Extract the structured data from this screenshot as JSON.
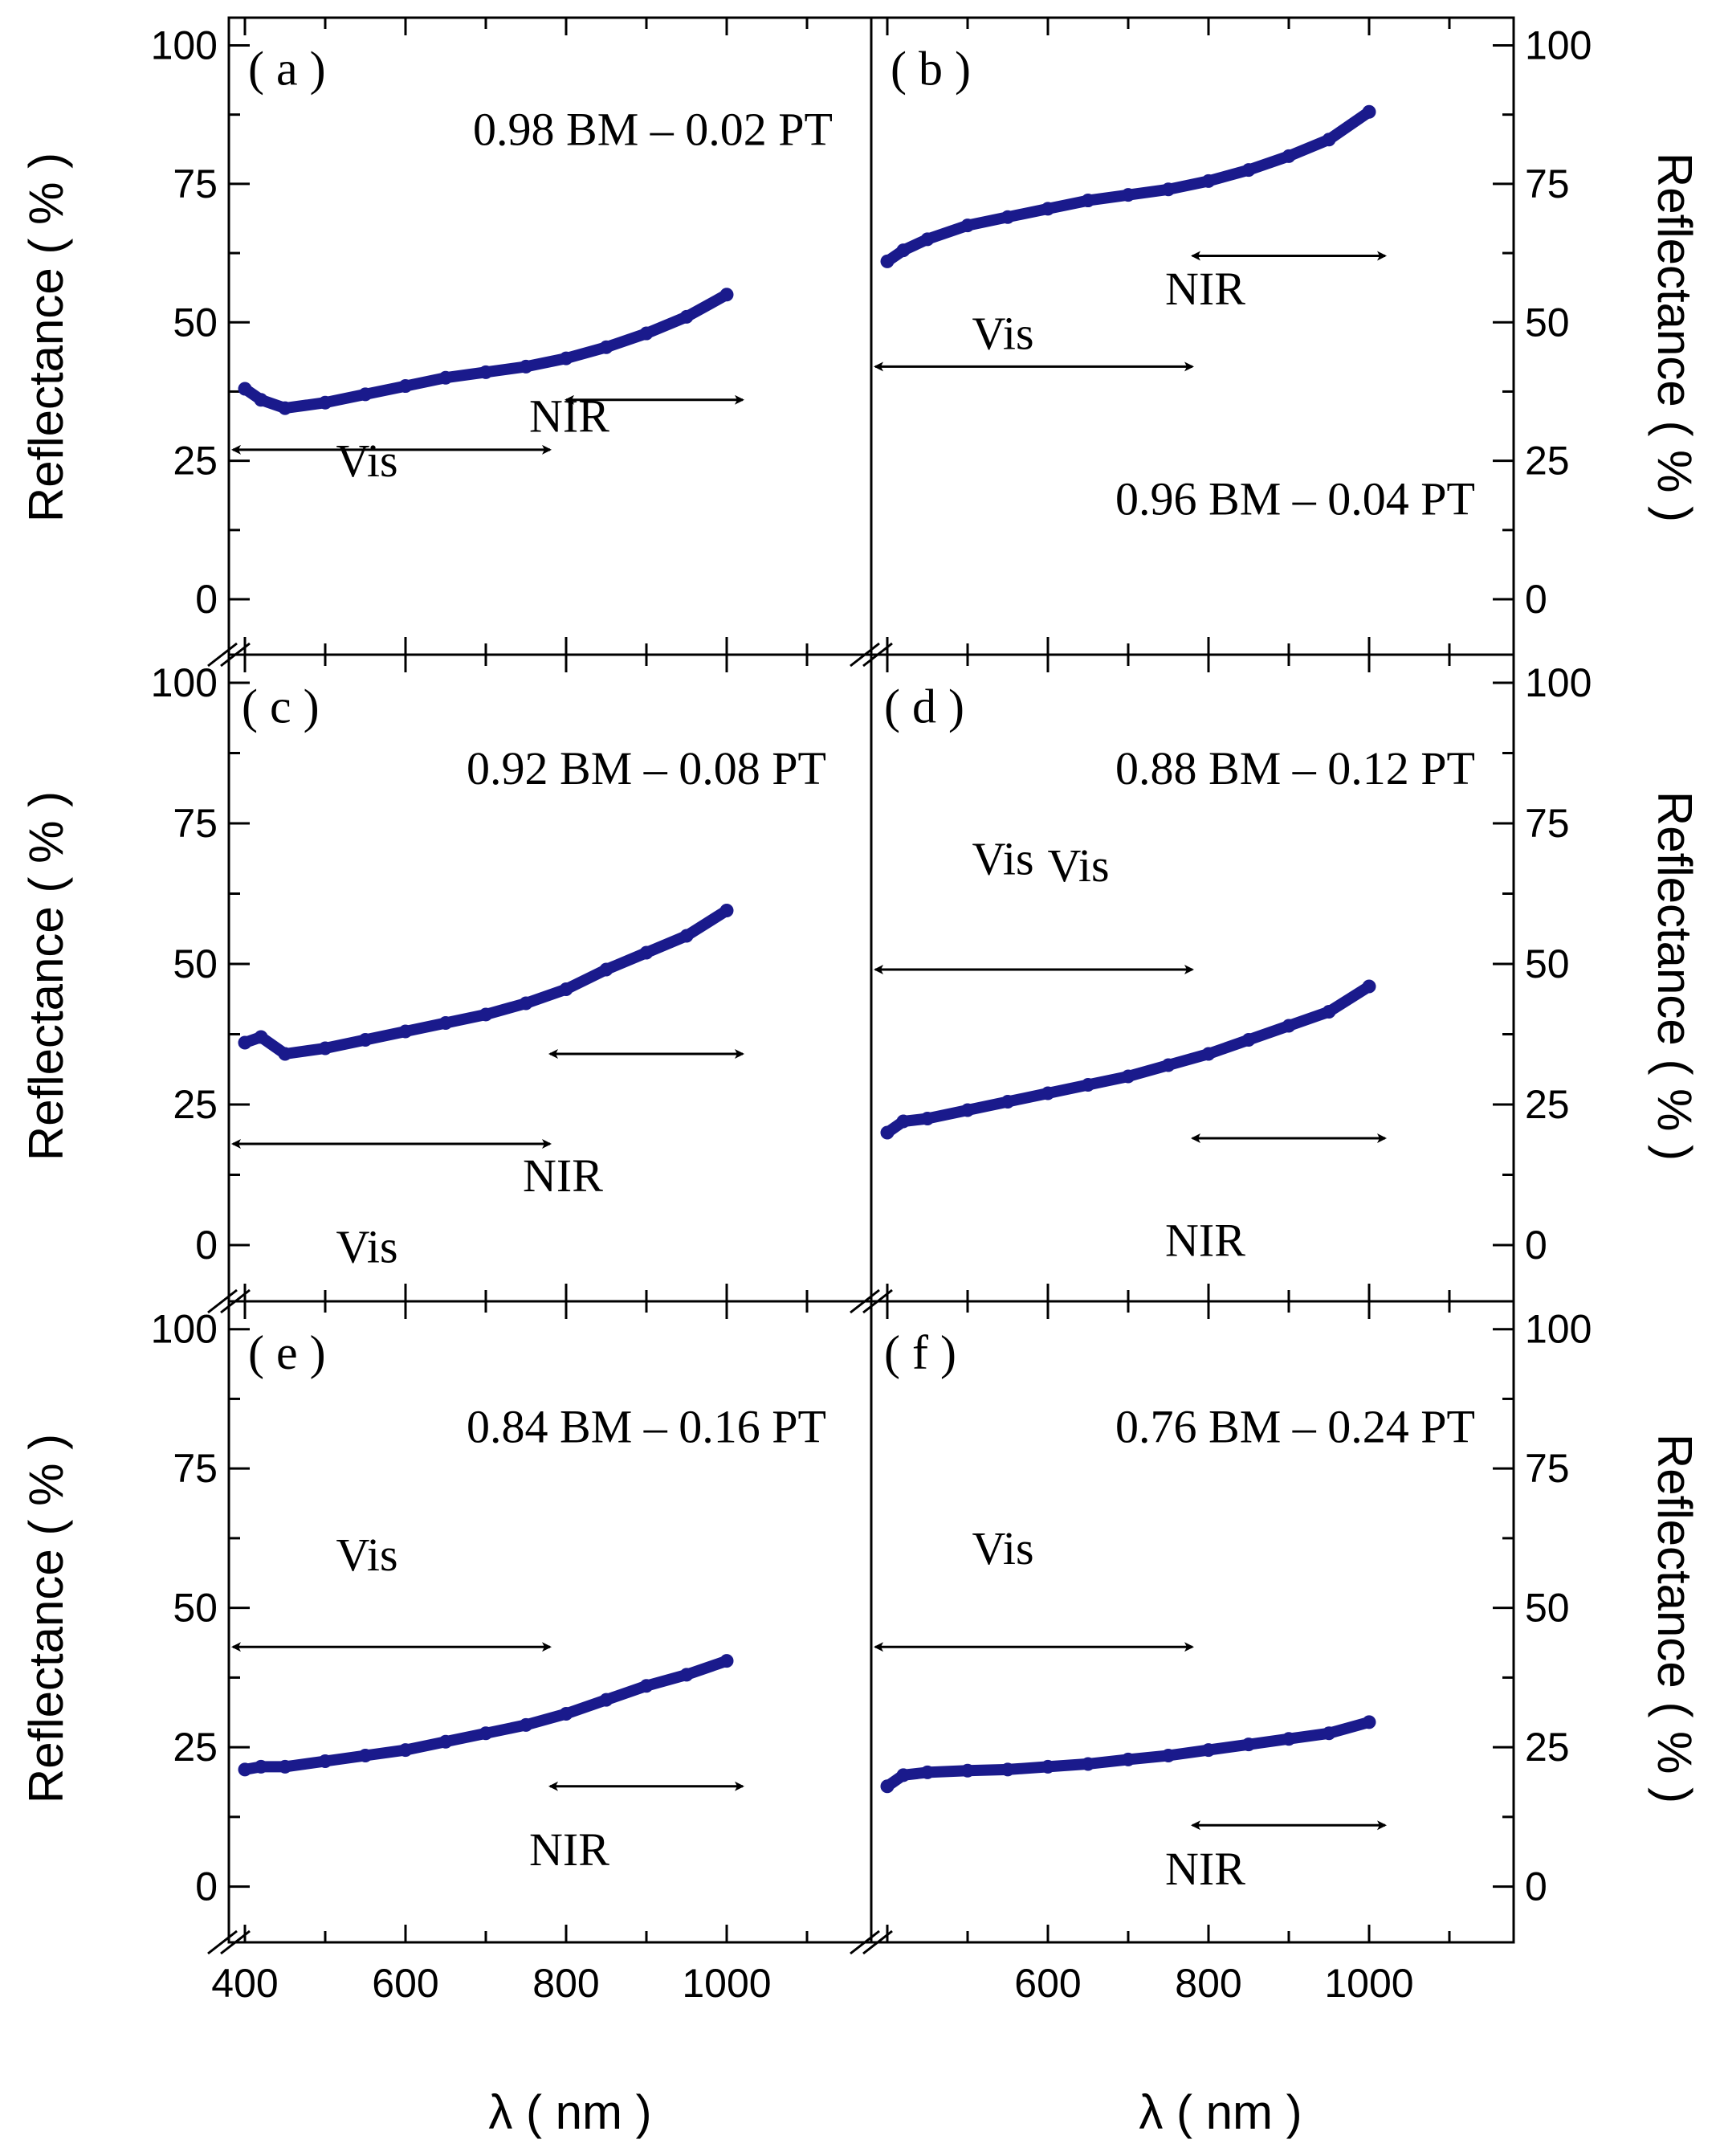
{
  "figure": {
    "x_axis_label": "λ ( nm )",
    "y_axis_label": "Reflectance ( % )",
    "series_color": "#1a1a8c"
  },
  "chart_data": [
    {
      "type": "scatter",
      "panel": "( a )",
      "composition": "0.98 BM – 0.02 PT",
      "xlim": [
        380,
        1180
      ],
      "ylim": [
        -10,
        105
      ],
      "x_ticks": [
        400,
        600,
        800,
        1000
      ],
      "y_ticks": [
        0,
        25,
        50,
        75,
        100
      ],
      "x": [
        400,
        420,
        450,
        500,
        550,
        600,
        650,
        700,
        750,
        800,
        850,
        900,
        950,
        1000
      ],
      "y": [
        38,
        36,
        34.5,
        35.5,
        37,
        38.5,
        40,
        41,
        42,
        43.5,
        45.5,
        48,
        51,
        55
      ],
      "vis_label": "Vis",
      "nir_label": "NIR",
      "vis_arrow": {
        "x": [
          385,
          780
        ],
        "y": 27
      },
      "nir_arrow": {
        "x": [
          800,
          1020
        ],
        "y": 36
      }
    },
    {
      "type": "scatter",
      "panel": "( b )",
      "composition": "0.96 BM – 0.04 PT",
      "xlim": [
        380,
        1180
      ],
      "ylim": [
        -10,
        105
      ],
      "x_ticks": [
        400,
        600,
        800,
        1000
      ],
      "y_ticks": [
        0,
        25,
        50,
        75,
        100
      ],
      "x": [
        400,
        420,
        450,
        500,
        550,
        600,
        650,
        700,
        750,
        800,
        850,
        900,
        950,
        1000
      ],
      "y": [
        61,
        63,
        65,
        67.5,
        69,
        70.5,
        72,
        73,
        74,
        75.5,
        77.5,
        80,
        83,
        88
      ],
      "vis_label": "Vis",
      "nir_label": "NIR",
      "vis_arrow": {
        "x": [
          385,
          780
        ],
        "y": 42
      },
      "nir_arrow": {
        "x": [
          780,
          1020
        ],
        "y": 62
      }
    },
    {
      "type": "scatter",
      "panel": "( c )",
      "composition": "0.92 BM – 0.08 PT",
      "xlim": [
        380,
        1180
      ],
      "ylim": [
        -10,
        105
      ],
      "x_ticks": [
        400,
        600,
        800,
        1000
      ],
      "y_ticks": [
        0,
        25,
        50,
        75,
        100
      ],
      "x": [
        400,
        420,
        450,
        500,
        550,
        600,
        650,
        700,
        750,
        800,
        850,
        900,
        950,
        1000
      ],
      "y": [
        36,
        37,
        34,
        35,
        36.5,
        38,
        39.5,
        41,
        43,
        45.5,
        49,
        52,
        55,
        59.5
      ],
      "vis_label": "Vis",
      "nir_label": "NIR",
      "vis_arrow": {
        "x": [
          385,
          780
        ],
        "y": 18
      },
      "nir_arrow": {
        "x": [
          780,
          1020
        ],
        "y": 34
      }
    },
    {
      "type": "scatter",
      "panel": "( d )",
      "composition": "0.88 BM – 0.12 PT",
      "xlim": [
        380,
        1180
      ],
      "ylim": [
        -10,
        105
      ],
      "x_ticks": [
        400,
        600,
        800,
        1000
      ],
      "y_ticks": [
        0,
        25,
        50,
        75,
        100
      ],
      "x": [
        400,
        420,
        450,
        500,
        550,
        600,
        650,
        700,
        750,
        800,
        850,
        900,
        950,
        1000
      ],
      "y": [
        20,
        22,
        22.5,
        24,
        25.5,
        27,
        28.5,
        30,
        32,
        34,
        36.5,
        39,
        41.5,
        46
      ],
      "vis_label": "Vis",
      "vis_label_2": "Vis",
      "nir_label": "NIR",
      "vis_arrow": {
        "x": [
          385,
          780
        ],
        "y": 49
      },
      "nir_arrow": {
        "x": [
          780,
          1020
        ],
        "y": 19
      }
    },
    {
      "type": "scatter",
      "panel": "( e )",
      "composition": "0.84 BM – 0.16 PT",
      "xlim": [
        380,
        1180
      ],
      "ylim": [
        -10,
        105
      ],
      "x_ticks": [
        400,
        600,
        800,
        1000
      ],
      "y_ticks": [
        0,
        25,
        50,
        75,
        100
      ],
      "x": [
        400,
        420,
        450,
        500,
        550,
        600,
        650,
        700,
        750,
        800,
        850,
        900,
        950,
        1000
      ],
      "y": [
        21,
        21.5,
        21.5,
        22.5,
        23.5,
        24.5,
        26,
        27.5,
        29,
        31,
        33.5,
        36,
        38,
        40.5
      ],
      "vis_label": "Vis",
      "nir_label": "NIR",
      "vis_arrow": {
        "x": [
          385,
          780
        ],
        "y": 43
      },
      "nir_arrow": {
        "x": [
          780,
          1020
        ],
        "y": 18
      }
    },
    {
      "type": "scatter",
      "panel": "( f )",
      "composition": "0.76 BM – 0.24 PT",
      "xlim": [
        380,
        1180
      ],
      "ylim": [
        -10,
        105
      ],
      "x_ticks": [
        400,
        600,
        800,
        1000
      ],
      "y_ticks": [
        0,
        25,
        50,
        75,
        100
      ],
      "x": [
        400,
        420,
        450,
        500,
        550,
        600,
        650,
        700,
        750,
        800,
        850,
        900,
        950,
        1000
      ],
      "y": [
        18,
        20,
        20.5,
        20.8,
        21,
        21.5,
        22,
        22.8,
        23.5,
        24.5,
        25.5,
        26.5,
        27.5,
        29.5
      ],
      "vis_label": "Vis",
      "nir_label": "NIR",
      "vis_arrow": {
        "x": [
          385,
          780
        ],
        "y": 43
      },
      "nir_arrow": {
        "x": [
          780,
          1020
        ],
        "y": 11
      }
    }
  ]
}
